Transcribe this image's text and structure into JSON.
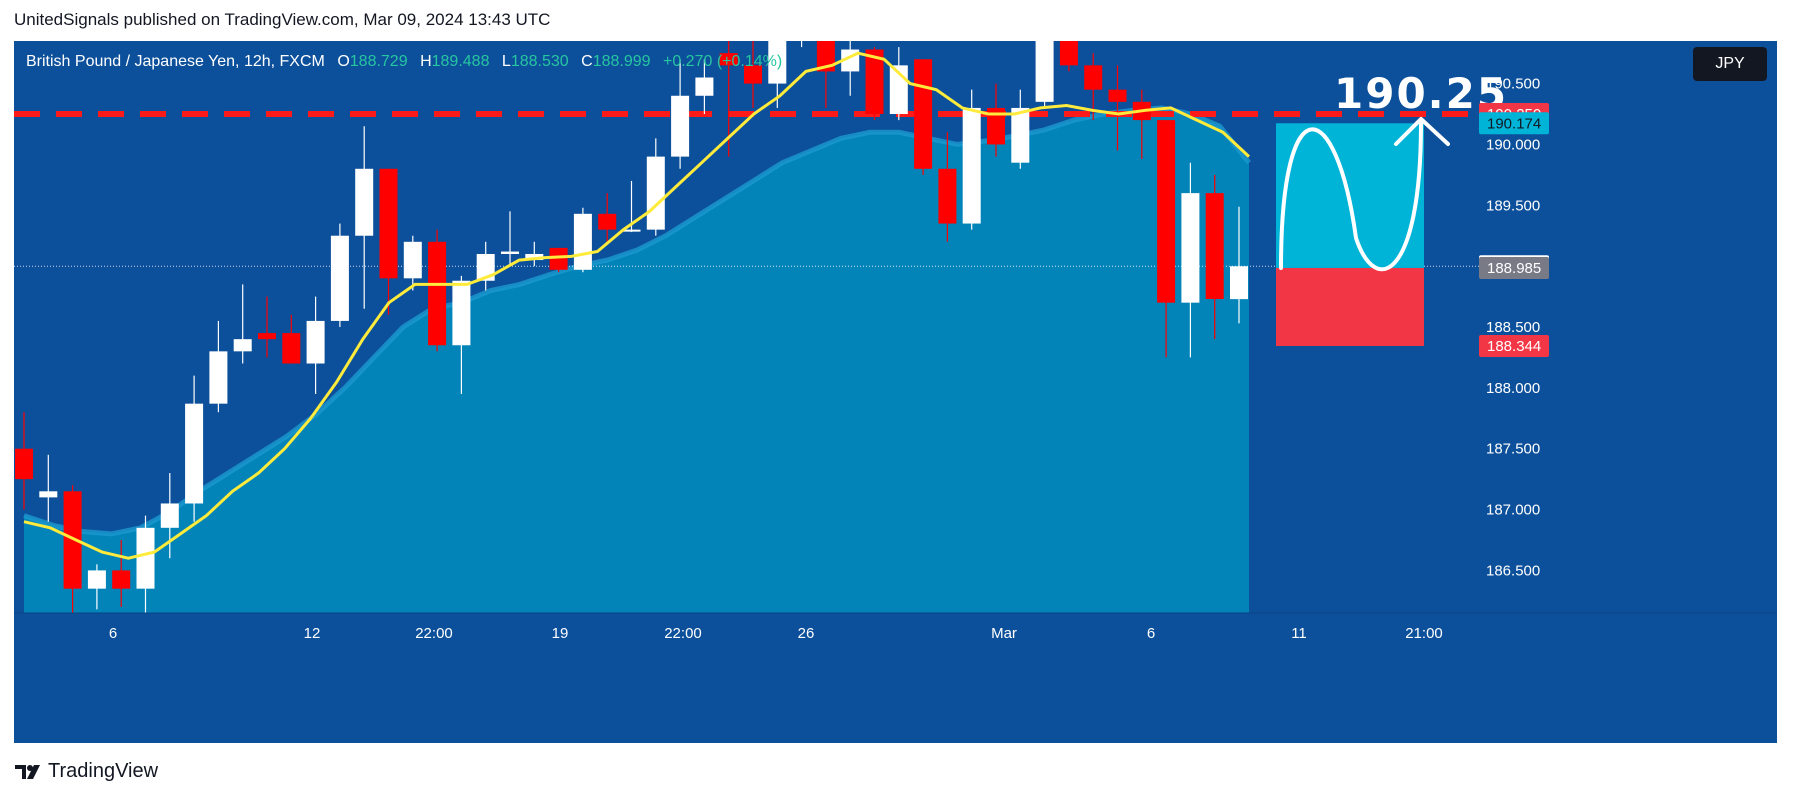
{
  "header": {
    "published_text": "UnitedSignals published on TradingView.com, Mar 09, 2024 13:43 UTC"
  },
  "symbol_bar": {
    "name": "British Pound / Japanese Yen, 12h, FXCM",
    "o_label": "O",
    "o_value": "188.729",
    "h_label": "H",
    "h_value": "189.488",
    "l_label": "L",
    "l_value": "188.530",
    "c_label": "C",
    "c_value": "188.999",
    "change": "+0.270 (+0.14%)"
  },
  "currency_button": "JPY",
  "footer": {
    "brand": "TradingView"
  },
  "colors": {
    "background": "#0c4f9a",
    "area_fill": "#0284b8",
    "up_candle": "#ffffff",
    "down_candle": "#ff0000",
    "ema_fast": "#ffeb3b",
    "target_line": "#ff1a1a",
    "profit_zone": "#00b4d8",
    "loss_zone": "#f23645",
    "ohlc_value": "#26c6a0"
  },
  "chart_data": {
    "type": "candlestick",
    "interval": "12h",
    "ylim": [
      186.15,
      190.85
    ],
    "y_ticks": [
      "186.500",
      "187.000",
      "187.500",
      "188.000",
      "188.500",
      "189.000",
      "189.500",
      "190.000",
      "190.500"
    ],
    "x_tick_labels": [
      "6",
      "12",
      "22:00",
      "19",
      "22:00",
      "26",
      "Mar",
      "6",
      "11",
      "21:00"
    ],
    "candles": [
      {
        "o": 187.5,
        "h": 187.8,
        "l": 187.0,
        "c": 187.25
      },
      {
        "o": 187.1,
        "h": 187.45,
        "l": 186.9,
        "c": 187.15
      },
      {
        "o": 187.15,
        "h": 187.2,
        "l": 186.12,
        "c": 186.35
      },
      {
        "o": 186.35,
        "h": 186.55,
        "l": 186.18,
        "c": 186.5
      },
      {
        "o": 186.5,
        "h": 186.75,
        "l": 186.2,
        "c": 186.35
      },
      {
        "o": 186.35,
        "h": 186.95,
        "l": 186.15,
        "c": 186.85
      },
      {
        "o": 186.85,
        "h": 187.3,
        "l": 186.6,
        "c": 187.05
      },
      {
        "o": 187.05,
        "h": 188.1,
        "l": 186.9,
        "c": 187.87
      },
      {
        "o": 187.87,
        "h": 188.55,
        "l": 187.8,
        "c": 188.3
      },
      {
        "o": 188.3,
        "h": 188.85,
        "l": 188.2,
        "c": 188.4
      },
      {
        "o": 188.45,
        "h": 188.75,
        "l": 188.25,
        "c": 188.4
      },
      {
        "o": 188.45,
        "h": 188.6,
        "l": 188.2,
        "c": 188.2
      },
      {
        "o": 188.2,
        "h": 188.75,
        "l": 187.95,
        "c": 188.55
      },
      {
        "o": 188.55,
        "h": 189.35,
        "l": 188.5,
        "c": 189.25
      },
      {
        "o": 189.25,
        "h": 190.15,
        "l": 188.65,
        "c": 189.8
      },
      {
        "o": 189.8,
        "h": 189.8,
        "l": 188.6,
        "c": 188.9
      },
      {
        "o": 188.9,
        "h": 189.25,
        "l": 188.8,
        "c": 189.2
      },
      {
        "o": 189.2,
        "h": 189.3,
        "l": 188.3,
        "c": 188.35
      },
      {
        "o": 188.35,
        "h": 188.92,
        "l": 187.95,
        "c": 188.88
      },
      {
        "o": 188.88,
        "h": 189.2,
        "l": 188.8,
        "c": 189.1
      },
      {
        "o": 189.1,
        "h": 189.45,
        "l": 189.0,
        "c": 189.12
      },
      {
        "o": 189.05,
        "h": 189.2,
        "l": 189.0,
        "c": 189.1
      },
      {
        "o": 189.15,
        "h": 189.15,
        "l": 188.95,
        "c": 188.97
      },
      {
        "o": 188.97,
        "h": 189.48,
        "l": 188.95,
        "c": 189.43
      },
      {
        "o": 189.43,
        "h": 189.6,
        "l": 189.2,
        "c": 189.3
      },
      {
        "o": 189.3,
        "h": 189.7,
        "l": 189.28,
        "c": 189.3
      },
      {
        "o": 189.3,
        "h": 190.05,
        "l": 189.25,
        "c": 189.9
      },
      {
        "o": 189.9,
        "h": 190.7,
        "l": 189.8,
        "c": 190.4
      },
      {
        "o": 190.4,
        "h": 190.7,
        "l": 190.25,
        "c": 190.55
      },
      {
        "o": 190.75,
        "h": 190.9,
        "l": 189.9,
        "c": 190.65
      },
      {
        "o": 190.65,
        "h": 191.0,
        "l": 190.3,
        "c": 190.5
      },
      {
        "o": 190.5,
        "h": 190.9,
        "l": 190.3,
        "c": 190.85
      },
      {
        "o": 190.95,
        "h": 191.15,
        "l": 190.8,
        "c": 191.05
      },
      {
        "o": 191.05,
        "h": 191.05,
        "l": 190.3,
        "c": 190.6
      },
      {
        "o": 190.6,
        "h": 190.9,
        "l": 190.4,
        "c": 190.78
      },
      {
        "o": 190.78,
        "h": 190.8,
        "l": 190.2,
        "c": 190.25
      },
      {
        "o": 190.25,
        "h": 190.8,
        "l": 190.2,
        "c": 190.65
      },
      {
        "o": 190.7,
        "h": 190.7,
        "l": 189.75,
        "c": 189.8
      },
      {
        "o": 189.8,
        "h": 190.1,
        "l": 189.2,
        "c": 189.35
      },
      {
        "o": 189.35,
        "h": 190.45,
        "l": 189.3,
        "c": 190.3
      },
      {
        "o": 190.3,
        "h": 190.5,
        "l": 189.9,
        "c": 190.0
      },
      {
        "o": 189.85,
        "h": 190.45,
        "l": 189.8,
        "c": 190.3
      },
      {
        "o": 190.35,
        "h": 190.95,
        "l": 190.3,
        "c": 190.85
      },
      {
        "o": 190.85,
        "h": 190.95,
        "l": 190.6,
        "c": 190.65
      },
      {
        "o": 190.65,
        "h": 190.75,
        "l": 190.2,
        "c": 190.45
      },
      {
        "o": 190.45,
        "h": 190.65,
        "l": 189.95,
        "c": 190.35
      },
      {
        "o": 190.35,
        "h": 190.45,
        "l": 189.88,
        "c": 190.2
      },
      {
        "o": 190.2,
        "h": 190.2,
        "l": 188.25,
        "c": 188.7
      },
      {
        "o": 188.7,
        "h": 189.85,
        "l": 188.25,
        "c": 189.6
      },
      {
        "o": 189.6,
        "h": 189.75,
        "l": 188.4,
        "c": 188.73
      },
      {
        "o": 188.729,
        "h": 189.488,
        "l": 188.53,
        "c": 188.999
      }
    ],
    "ema_fast": [
      186.9,
      186.85,
      186.75,
      186.65,
      186.6,
      186.65,
      186.8,
      186.95,
      187.15,
      187.3,
      187.5,
      187.75,
      188.05,
      188.4,
      188.7,
      188.85,
      188.85,
      188.85,
      188.93,
      189.05,
      189.07,
      189.08,
      189.12,
      189.3,
      189.45,
      189.65,
      189.85,
      190.05,
      190.25,
      190.4,
      190.6,
      190.65,
      190.75,
      190.7,
      190.5,
      190.45,
      190.3,
      190.25,
      190.25,
      190.3,
      190.32,
      190.28,
      190.25,
      190.28,
      190.3,
      190.2,
      190.1,
      189.9
    ],
    "area_series": [
      186.95,
      186.87,
      186.82,
      186.8,
      186.85,
      186.98,
      187.15,
      187.3,
      187.45,
      187.6,
      187.78,
      188.0,
      188.25,
      188.5,
      188.65,
      188.7,
      188.8,
      188.85,
      188.93,
      189.0,
      189.05,
      189.13,
      189.25,
      189.4,
      189.55,
      189.7,
      189.85,
      189.95,
      190.05,
      190.1,
      190.1,
      190.05,
      190.0,
      190.03,
      190.07,
      190.12,
      190.2,
      190.25,
      190.28,
      190.3,
      190.25,
      190.15,
      189.85
    ],
    "target_price": 190.25,
    "target_text": "190.25",
    "projection": {
      "entry": 188.985,
      "take_profit": 190.174,
      "stop": 188.344
    },
    "price_labels": [
      {
        "text": "190.250",
        "value": 190.25,
        "bg": "#f23645",
        "color": "#ffffff"
      },
      {
        "text": "190.174",
        "value": 190.174,
        "bg": "#00b4d8",
        "color": "#131722"
      },
      {
        "text": "188.999",
        "value": 188.999,
        "bg": "#ffffff",
        "color": "#131722"
      },
      {
        "text": "188.985",
        "value": 188.985,
        "bg": "#787b86",
        "color": "#ffffff"
      },
      {
        "text": "188.344",
        "value": 188.344,
        "bg": "#f23645",
        "color": "#ffffff"
      }
    ]
  }
}
